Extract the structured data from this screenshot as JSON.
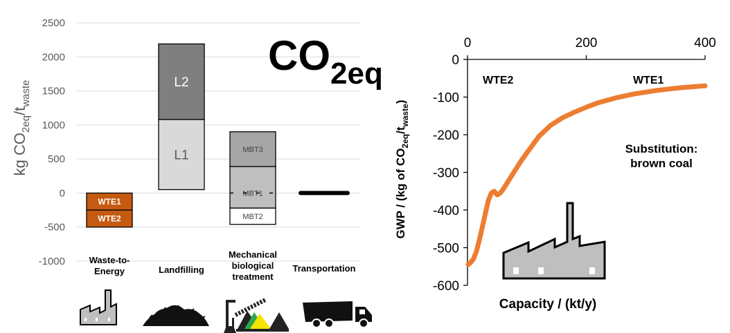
{
  "chart_data": [
    {
      "type": "bar",
      "subtype": "stacked-floating",
      "title": "CO2eq",
      "title_main": "CO",
      "title_sub": "2eq",
      "ylabel": "kg CO2eq/twaste",
      "ylabel_parts": {
        "main": "kg CO",
        "sub1": "2eq",
        "mid": "/t",
        "sub2": "waste"
      },
      "ylim": [
        -1000,
        2500
      ],
      "yticks": [
        2500,
        2000,
        1500,
        1000,
        500,
        0,
        -500,
        -1000
      ],
      "grid": true,
      "categories": [
        {
          "label_lines": [
            "Waste-to-",
            "Energy"
          ],
          "icon": "factory-icon"
        },
        {
          "label_lines": [
            "Landfilling"
          ],
          "icon": "landfill-icon"
        },
        {
          "label_lines": [
            "Mechanical",
            "biological",
            "treatment"
          ],
          "icon": "mbt-plant-icon"
        },
        {
          "label_lines": [
            "Transportation"
          ],
          "icon": "truck-icon"
        }
      ],
      "segments": [
        {
          "category": 0,
          "label": "WTE1",
          "from": 0,
          "to": -250,
          "color": "#c55a11"
        },
        {
          "category": 0,
          "label": "WTE2",
          "from": -250,
          "to": -500,
          "color": "#c55a11"
        },
        {
          "category": 1,
          "label": "L1",
          "from": 50,
          "to": 1080,
          "color": "#d9d9d9"
        },
        {
          "category": 1,
          "label": "L2",
          "from": 1080,
          "to": 2190,
          "color": "#7f7f7f"
        },
        {
          "category": 2,
          "label": "MBT2",
          "from": -460,
          "to": -220,
          "color": "#ffffff"
        },
        {
          "category": 2,
          "label": "MBT1",
          "from": -220,
          "to": 390,
          "color": "#bfbfbf"
        },
        {
          "category": 2,
          "label": "MBT3",
          "from": 390,
          "to": 900,
          "color": "#a6a6a6"
        }
      ],
      "markers": [
        {
          "category": 2,
          "value": 0,
          "style": "dashed"
        },
        {
          "category": 3,
          "value": 0,
          "style": "thick"
        }
      ]
    },
    {
      "type": "line",
      "xlabel": "Capacity / (kt/y)",
      "ylabel": "GWP / (kg of CO2eq/twaste)",
      "ylabel_parts": {
        "main": "GWP / (kg of CO",
        "sub1": "2eq",
        "mid": "/t",
        "sub2": "waste",
        "end": ")"
      },
      "xlim": [
        0,
        400
      ],
      "ylim": [
        -600,
        0
      ],
      "xticks": [
        0,
        200,
        400
      ],
      "yticks": [
        0,
        -100,
        -200,
        -300,
        -400,
        -500,
        -600
      ],
      "series": [
        {
          "color": "#ed7d31",
          "x": [
            1,
            5,
            10,
            15,
            20,
            25,
            30,
            35,
            40,
            45,
            50,
            55,
            60,
            70,
            80,
            90,
            100,
            120,
            140,
            160,
            180,
            200,
            220,
            250,
            280,
            320,
            360,
            400
          ],
          "y": [
            -545,
            -540,
            -530,
            -510,
            -480,
            -445,
            -410,
            -375,
            -355,
            -350,
            -360,
            -355,
            -345,
            -320,
            -295,
            -270,
            -248,
            -205,
            -175,
            -155,
            -140,
            -127,
            -115,
            -102,
            -92,
            -82,
            -75,
            -70
          ]
        }
      ],
      "annotations": [
        "WTE2",
        "WTE1"
      ],
      "note_lines": [
        "Substitution:",
        "brown coal"
      ],
      "icon": "factory-icon"
    }
  ]
}
